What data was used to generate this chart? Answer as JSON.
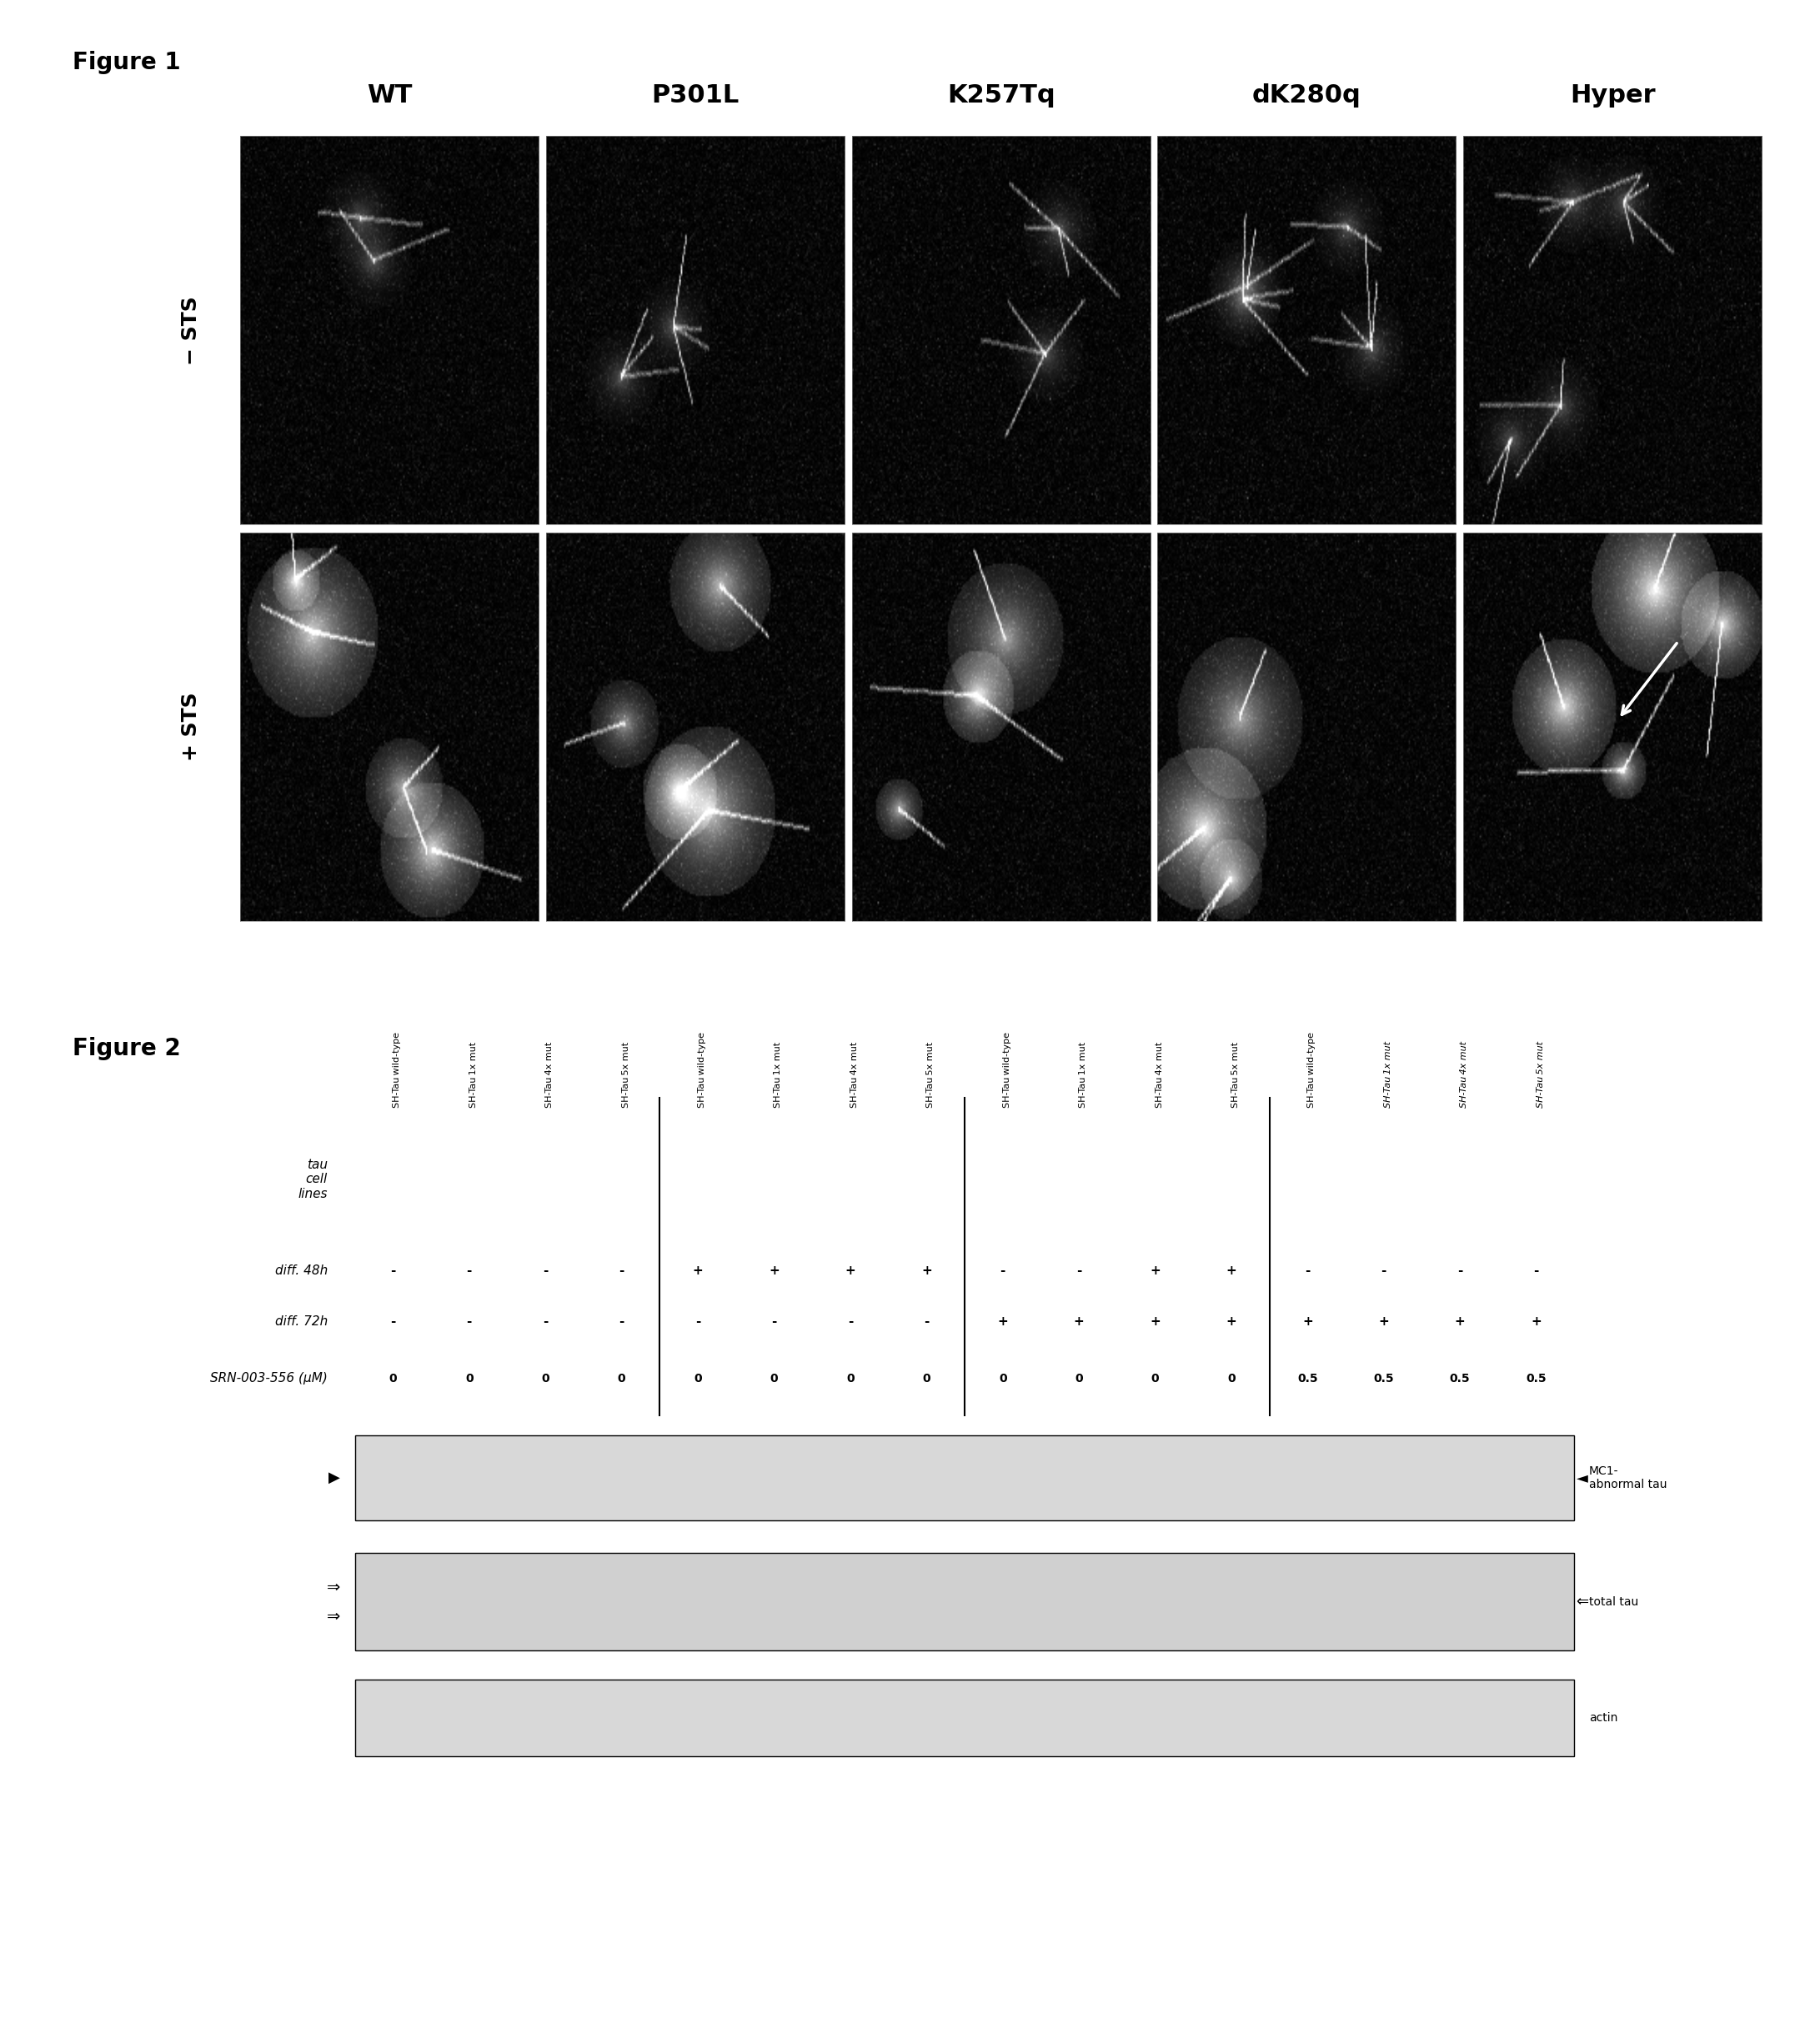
{
  "fig1_title": "Figure 1",
  "fig2_title": "Figure 2",
  "col_headers": [
    "WT",
    "P301L",
    "K257Tq",
    "dK280q",
    "Hyper"
  ],
  "row_headers": [
    "− STS",
    "+ STS"
  ],
  "col_labels_fig2": [
    "SH-Tau\nwild-type",
    "SH-Tau\n1x mut",
    "SH-Tau\n4x mut",
    "SH-Tau\n5x mut",
    "SH-Tau\nwild-type",
    "SH-Tau\n1x mut",
    "SH-Tau\n4x mut",
    "SH-Tau\n5x mut",
    "SH-Tau\nwild-type",
    "SH-Tau\n1x mut",
    "SH-Tau\n4x mut",
    "SH-Tau\n5x mut",
    "SH-Tau\nwild-type",
    "SH-Tau\n1x mut",
    "SH-Tau\n4x mut",
    "SH-Tau\n5x mut"
  ],
  "col_labels_subscript": [
    [
      "SH-Tau",
      "wild-type",
      ""
    ],
    [
      "SH-Tau",
      "1x",
      " mut"
    ],
    [
      "SH-Tau",
      "4x",
      " mut"
    ],
    [
      "SH-Tau",
      "5x",
      " mut"
    ],
    [
      "SH-Tau",
      "wild-type",
      ""
    ],
    [
      "SH-Tau",
      "1x",
      " mut"
    ],
    [
      "SH-Tau",
      "4x",
      " mut"
    ],
    [
      "SH-Tau",
      "5x",
      " mut"
    ],
    [
      "SH-Tau",
      "wild-type",
      ""
    ],
    [
      "SH-Tau",
      "1x",
      " mut"
    ],
    [
      "SH-Tau",
      "4x",
      " mut"
    ],
    [
      "SH-Tau",
      "5x",
      " mut"
    ],
    [
      "SH-Tau",
      "wild-type",
      ""
    ],
    [
      "SH-Tau",
      "1x",
      " mut"
    ],
    [
      "SH-Tau",
      "4x",
      " mut"
    ],
    [
      "SH-Tau",
      "5x",
      " mut"
    ]
  ],
  "diff_48h": [
    "-",
    "-",
    "-",
    "-",
    "+",
    "+",
    "+",
    "+",
    "-",
    "-",
    "+",
    "+",
    "-",
    "-",
    "-",
    "-"
  ],
  "diff_72h": [
    "-",
    "-",
    "-",
    "-",
    "-",
    "-",
    "-",
    "-",
    "+",
    "+",
    "+",
    "+",
    "+",
    "+",
    "+",
    "+"
  ],
  "srn_conc": [
    "0",
    "0",
    "0",
    "0",
    "0",
    "0",
    "0",
    "0",
    "0",
    "0",
    "0",
    "0",
    "0.5",
    "0.5",
    "0.5",
    "0.5"
  ],
  "band_labels_right": [
    "MC1-\nabnormal tau",
    "total tau",
    "actin"
  ],
  "background_color": "#ffffff"
}
